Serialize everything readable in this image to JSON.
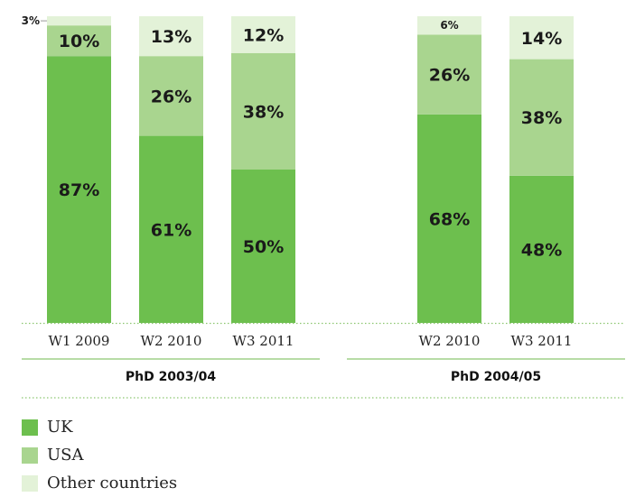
{
  "chart_data": {
    "type": "bar",
    "stacked": true,
    "ylim": [
      0,
      100
    ],
    "groups": [
      {
        "name": "PhD 2003/04",
        "categories": [
          "W1 2009",
          "W2 2010",
          "W3 2011"
        ],
        "series": [
          {
            "name": "UK",
            "values": [
              87,
              61,
              50
            ]
          },
          {
            "name": "USA",
            "values": [
              10,
              26,
              38
            ]
          },
          {
            "name": "Other countries",
            "values": [
              3,
              13,
              12
            ]
          }
        ]
      },
      {
        "name": "PhD 2004/05",
        "categories": [
          "W2 2010",
          "W3 2011"
        ],
        "series": [
          {
            "name": "UK",
            "values": [
              68,
              48
            ]
          },
          {
            "name": "USA",
            "values": [
              26,
              38
            ]
          },
          {
            "name": "Other countries",
            "values": [
              6,
              14
            ]
          }
        ]
      }
    ],
    "legend": {
      "position": "bottom-left",
      "entries": [
        "UK",
        "USA",
        "Other countries"
      ]
    },
    "colors": {
      "UK": "#6dbf4e",
      "USA": "#a9d58f",
      "Other countries": "#e3f2d8",
      "line": "#8cc670"
    }
  }
}
